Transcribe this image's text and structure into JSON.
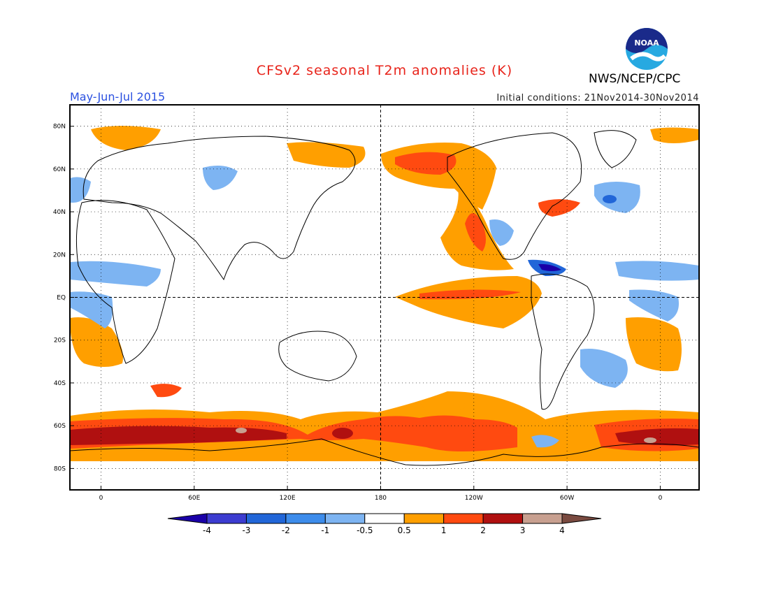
{
  "header": {
    "title": "CFSv2 seasonal T2m anomalies (K)",
    "period": "May-Jun-Jul 2015",
    "initial_conditions": "Initial conditions: 21Nov2014-30Nov2014",
    "organization": "NWS/NCEP/CPC",
    "logo_text": "NOAA"
  },
  "map": {
    "lat_labels": [
      "80N",
      "60N",
      "40N",
      "20N",
      "EQ",
      "20S",
      "40S",
      "60S",
      "80S"
    ],
    "lon_labels": [
      "0",
      "60E",
      "120E",
      "180",
      "120W",
      "60W",
      "0"
    ],
    "lat_values": [
      80,
      60,
      40,
      20,
      0,
      -20,
      -40,
      -60,
      -80
    ],
    "lon_values": [
      0,
      60,
      120,
      180,
      240,
      300,
      360
    ],
    "lon_range": [
      -20,
      385
    ],
    "lat_range": [
      -90,
      90
    ]
  },
  "colorbar": {
    "labels": [
      "-4",
      "-3",
      "-2",
      "-1",
      "-0.5",
      "0.5",
      "1",
      "2",
      "3",
      "4"
    ],
    "colors": [
      "#1a00a8",
      "#3c3cd0",
      "#2166d8",
      "#3d8ceb",
      "#7db4f2",
      "#ffffff",
      "#ff9f00",
      "#ff4a10",
      "#b01010",
      "#c8a090",
      "#7a4a40"
    ]
  }
}
